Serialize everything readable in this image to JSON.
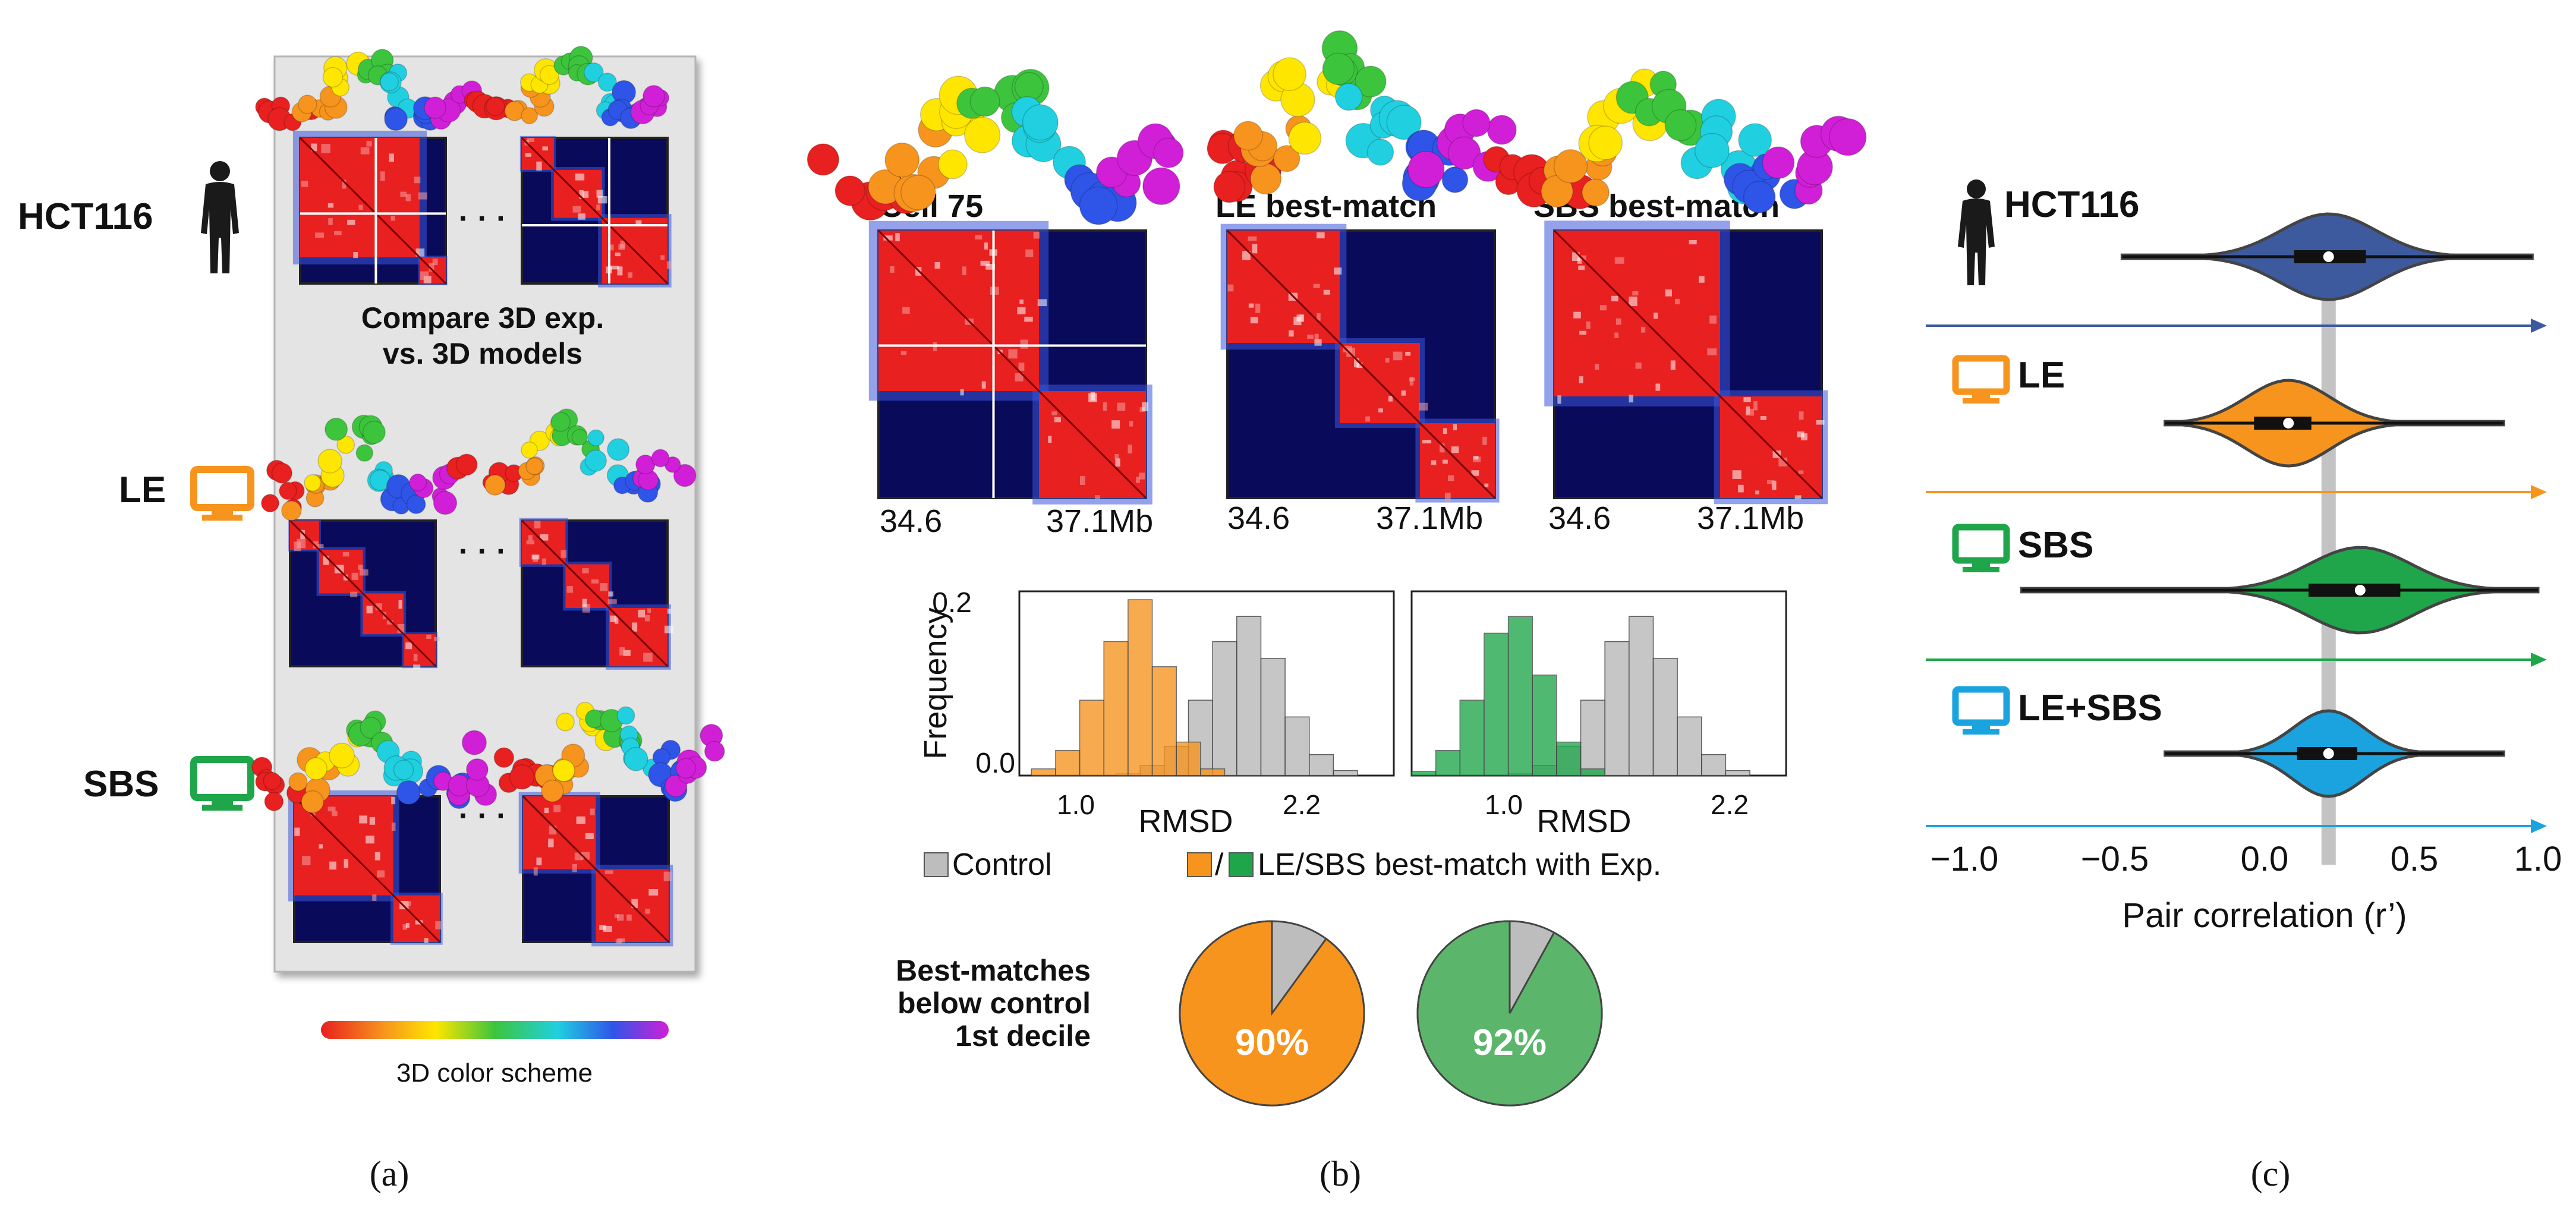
{
  "panel_a": {
    "caption": "(a)",
    "row_labels": [
      "HCT116",
      "LE",
      "SBS"
    ],
    "compare_line1": "Compare 3D exp.",
    "compare_line2": "vs. 3D models",
    "ellipsis": "· · ·",
    "color_scheme_label": "3D color scheme"
  },
  "panel_b": {
    "caption": "(b)",
    "map_titles": [
      "Cell 75",
      "LE best-match",
      "SBS best-match"
    ],
    "map_axis_start": "34.6",
    "map_axis_end": "37.1Mb",
    "hist_ylabel": "Frequency",
    "hist_xlabel": "RMSD",
    "hist_yticks": [
      "0.2",
      "0.0"
    ],
    "hist_xticks": [
      "1.0",
      "2.2"
    ],
    "legend_control": "Control",
    "legend_slash": "/",
    "legend_best": "LE/SBS best-match with Exp.",
    "pie_label_lines": [
      "Best-matches",
      "below control",
      "1st decile"
    ],
    "pies": [
      {
        "value": 90,
        "label": "90%",
        "color": "#f7941d"
      },
      {
        "value": 92,
        "label": "92%",
        "color": "#5bb56a"
      }
    ]
  },
  "panel_c": {
    "caption": "(c)",
    "xlabel": "Pair correlation (r’)",
    "xticks": [
      "−1.0",
      "−0.5",
      "0.0",
      "0.5",
      "1.0"
    ],
    "groups": [
      {
        "label": "HCT116",
        "color": "#3d5a9e"
      },
      {
        "label": "LE",
        "color": "#f7941d"
      },
      {
        "label": "SBS",
        "color": "#1fa64a"
      },
      {
        "label": "LE+SBS",
        "color": "#1aa3de"
      }
    ]
  },
  "colors": {
    "map_bg": "#0a0a5a",
    "map_red": "#e8201f",
    "control_gray": "#bdbdbd",
    "le_orange": "#f7941d",
    "sbs_green": "#1fa64a",
    "lesbs_blue": "#1aa3de",
    "hct_blue": "#3d5a9e"
  },
  "chart_data": [
    {
      "type": "histogram",
      "xlabel": "RMSD",
      "ylabel": "Frequency",
      "xlim": [
        0.85,
        2.4
      ],
      "ylim": [
        0,
        0.22
      ],
      "series": [
        {
          "name": "Control",
          "bins": [
            1.3,
            1.4,
            1.5,
            1.6,
            1.7,
            1.8,
            1.9,
            2.0,
            2.1,
            2.2
          ],
          "values": [
            0.002,
            0.012,
            0.035,
            0.09,
            0.16,
            0.19,
            0.14,
            0.07,
            0.025,
            0.006
          ]
        },
        {
          "name": "LE best-match",
          "bins": [
            0.95,
            1.05,
            1.15,
            1.25,
            1.35,
            1.45,
            1.55,
            1.65
          ],
          "values": [
            0.008,
            0.03,
            0.09,
            0.16,
            0.21,
            0.13,
            0.04,
            0.008
          ]
        }
      ]
    },
    {
      "type": "histogram",
      "xlabel": "RMSD",
      "ylabel": "Frequency",
      "xlim": [
        0.85,
        2.4
      ],
      "ylim": [
        0,
        0.22
      ],
      "series": [
        {
          "name": "Control",
          "bins": [
            1.3,
            1.4,
            1.5,
            1.6,
            1.7,
            1.8,
            1.9,
            2.0,
            2.1,
            2.2
          ],
          "values": [
            0.002,
            0.012,
            0.035,
            0.09,
            0.16,
            0.19,
            0.14,
            0.07,
            0.025,
            0.006
          ]
        },
        {
          "name": "SBS best-match",
          "bins": [
            0.9,
            1.0,
            1.1,
            1.2,
            1.3,
            1.4,
            1.5,
            1.6
          ],
          "values": [
            0.005,
            0.03,
            0.09,
            0.17,
            0.19,
            0.12,
            0.04,
            0.008
          ]
        }
      ]
    },
    {
      "type": "violin",
      "xlabel": "Pair correlation (r’)",
      "xlim": [
        -1.0,
        1.0
      ],
      "reference_line": 0.27,
      "series": [
        {
          "name": "HCT116",
          "min": -0.45,
          "q1": 0.15,
          "median": 0.27,
          "q3": 0.4,
          "max": 0.98,
          "peak": 0.27,
          "spread": 0.3
        },
        {
          "name": "LE",
          "min": -0.3,
          "q1": 0.01,
          "median": 0.13,
          "q3": 0.21,
          "max": 0.88,
          "peak": 0.13,
          "spread": 0.26
        },
        {
          "name": "SBS",
          "min": -0.8,
          "q1": 0.2,
          "median": 0.38,
          "q3": 0.52,
          "max": 1.0,
          "peak": 0.38,
          "spread": 0.32
        },
        {
          "name": "LE+SBS",
          "min": -0.3,
          "q1": 0.16,
          "median": 0.27,
          "q3": 0.37,
          "max": 0.88,
          "peak": 0.27,
          "spread": 0.22
        }
      ]
    }
  ]
}
